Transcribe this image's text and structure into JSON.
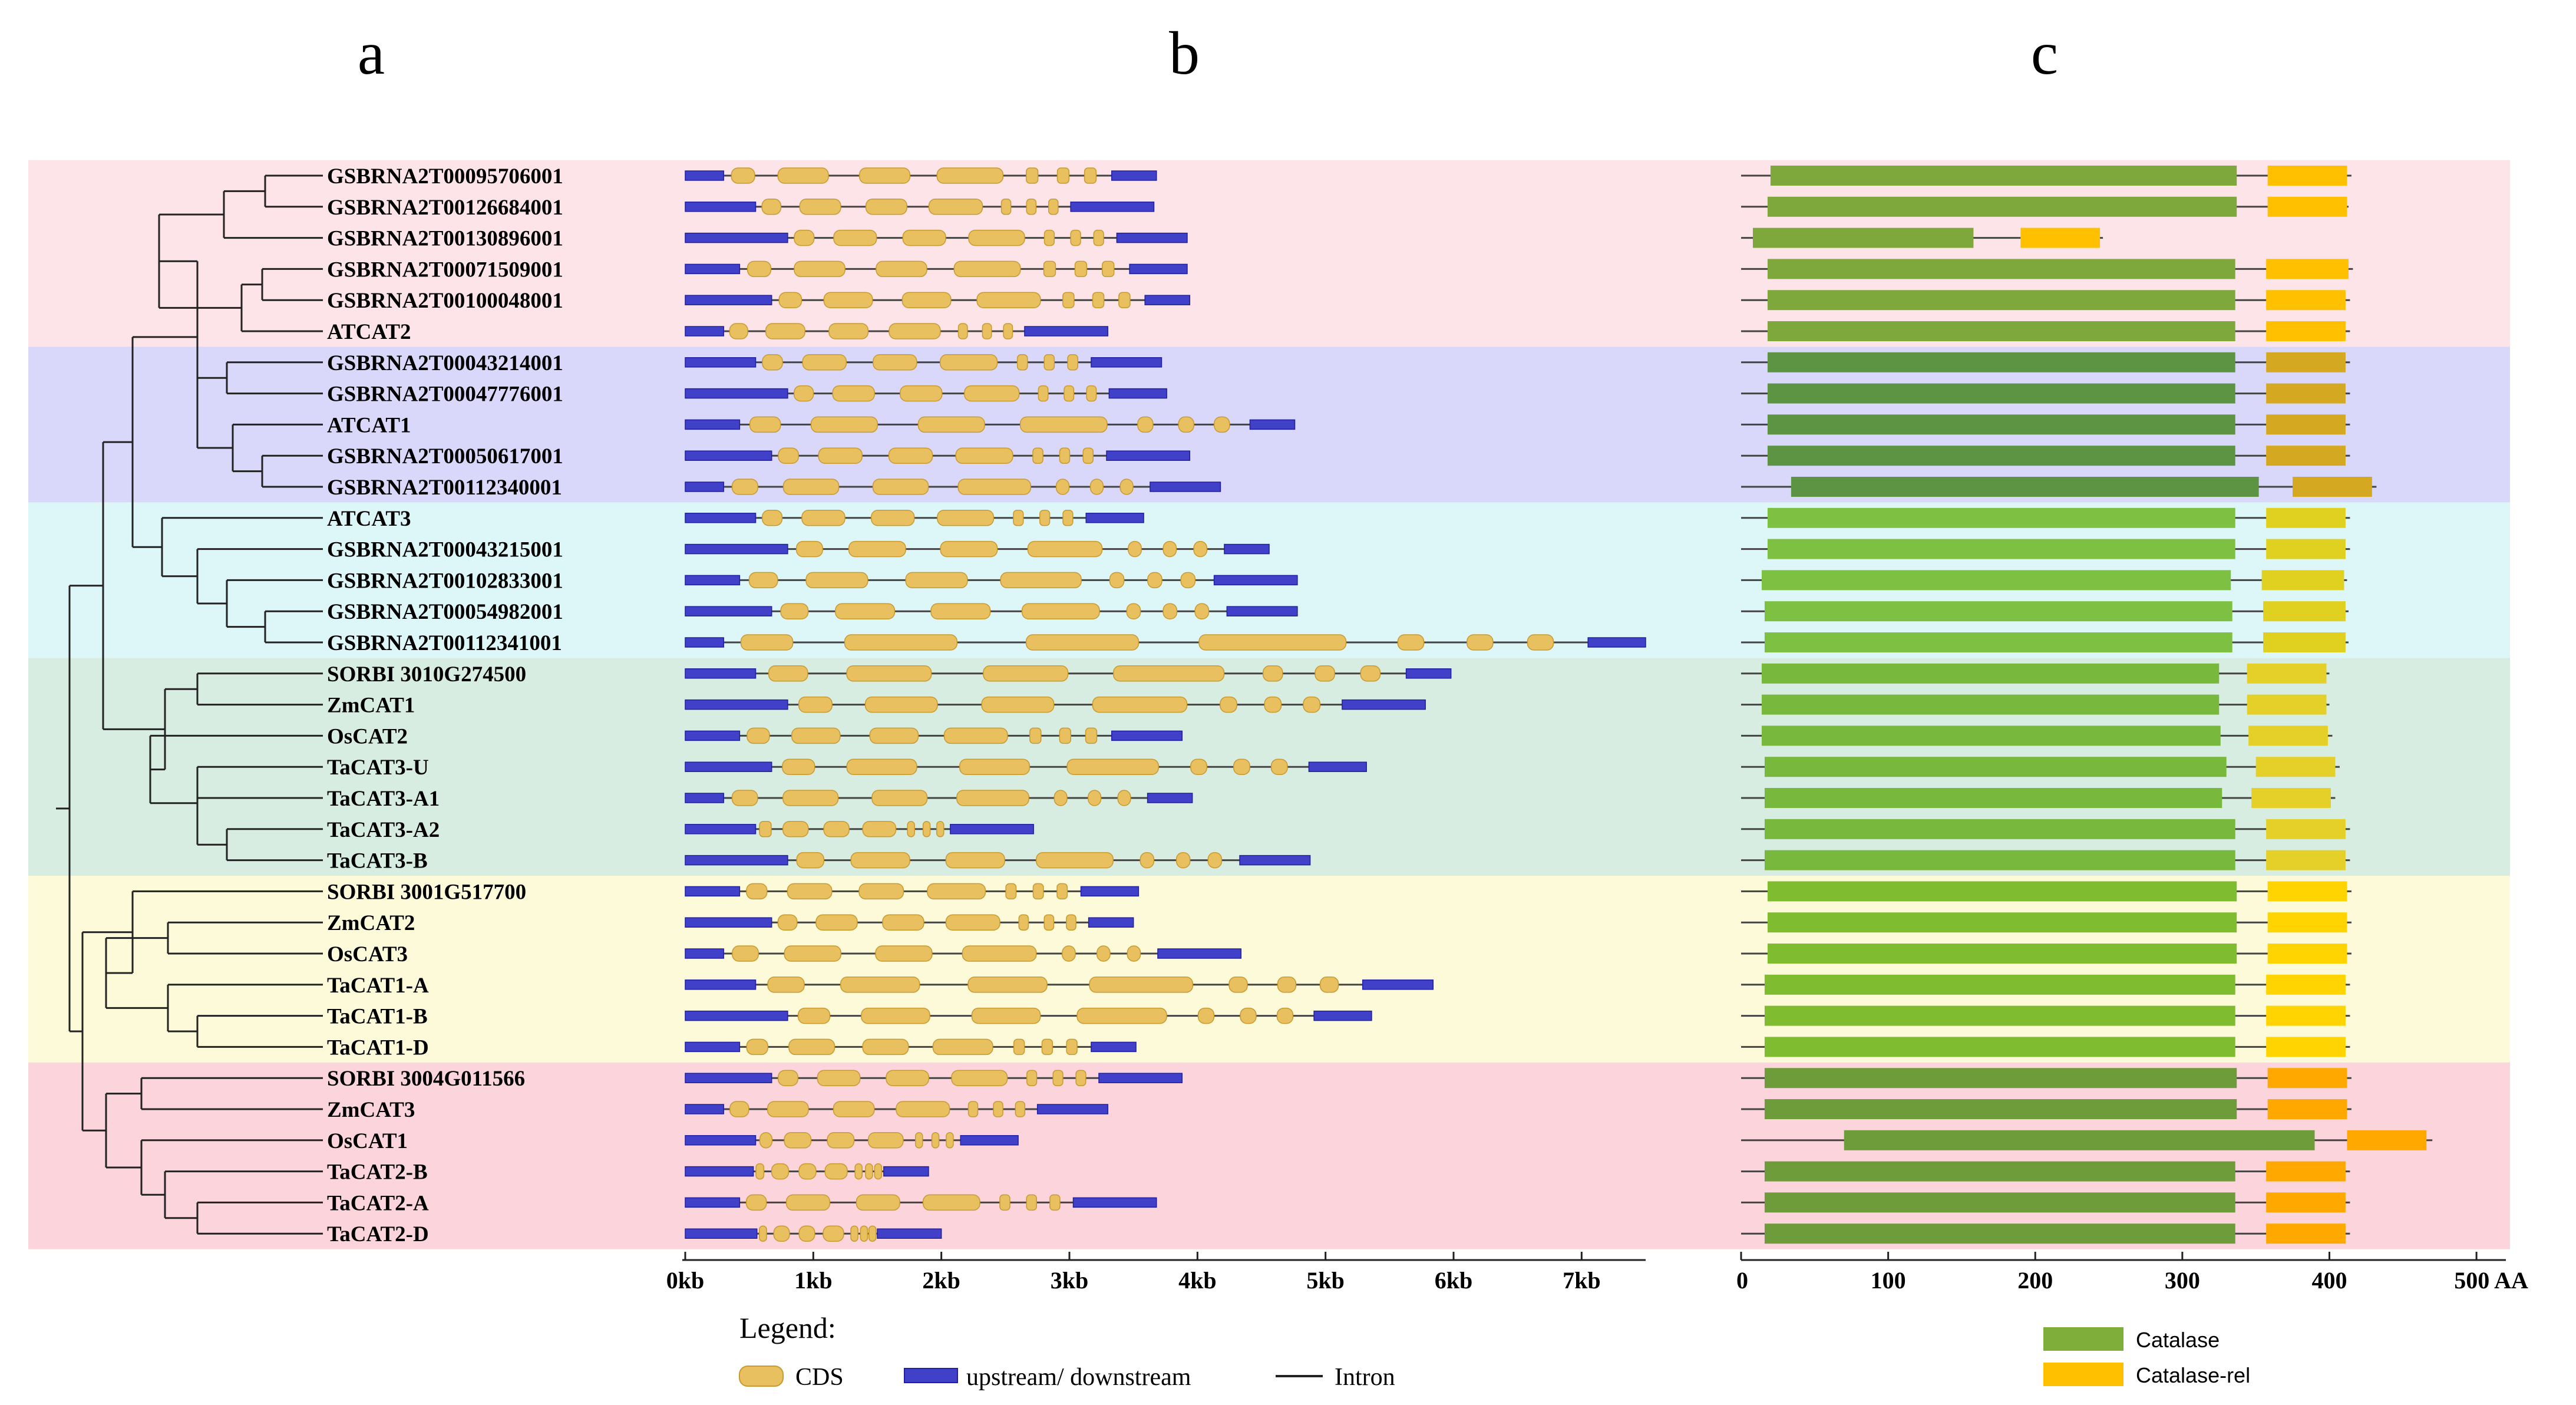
{
  "panels": {
    "a": "a",
    "b": "b",
    "c": "c"
  },
  "colors": {
    "cds": "#e8c060",
    "cds_edge": "#c89a30",
    "utr": "#4040c8",
    "utr_edge": "#2020a0",
    "intron": "#444444",
    "catalase": "#7fae3a",
    "catalase_rel": "#ffc000"
  },
  "groups": [
    {
      "name": "group-1",
      "color": "#fce4e8",
      "first": 0,
      "last": 5,
      "catalase_color": "#7fa83c",
      "rel_color": "#ffc000"
    },
    {
      "name": "group-2",
      "color": "#dad8fa",
      "first": 6,
      "last": 10,
      "catalase_color": "#5d9444",
      "rel_color": "#d4a820"
    },
    {
      "name": "group-3",
      "color": "#ddf6f8",
      "first": 11,
      "last": 15,
      "catalase_color": "#7ec042",
      "rel_color": "#e0d020"
    },
    {
      "name": "group-4",
      "color": "#d8ede2",
      "first": 16,
      "last": 22,
      "catalase_color": "#78b83c",
      "rel_color": "#e4d028"
    },
    {
      "name": "group-5",
      "color": "#fcfad8",
      "first": 23,
      "last": 28,
      "catalase_color": "#80bc30",
      "rel_color": "#ffd400"
    },
    {
      "name": "group-6",
      "color": "#fbd4dc",
      "first": 29,
      "last": 34,
      "catalase_color": "#6f9c3a",
      "rel_color": "#ffa800"
    }
  ],
  "genes": [
    {
      "name": "GSBRNA2T00095706001",
      "len": 3.68,
      "cat": [
        20,
        337
      ],
      "rel": [
        358,
        412
      ],
      "end": 415
    },
    {
      "name": "GSBRNA2T00126684001",
      "len": 3.66,
      "cat": [
        18,
        337
      ],
      "rel": [
        358,
        412
      ],
      "end": 413
    },
    {
      "name": "GSBRNA2T00130896001",
      "len": 3.92,
      "cat": [
        8,
        158
      ],
      "rel": [
        190,
        244
      ],
      "end": 246
    },
    {
      "name": "GSBRNA2T00071509001",
      "len": 3.92,
      "cat": [
        18,
        336
      ],
      "rel": [
        357,
        413
      ],
      "end": 416
    },
    {
      "name": "GSBRNA2T00100048001",
      "len": 3.94,
      "cat": [
        18,
        336
      ],
      "rel": [
        357,
        411
      ],
      "end": 414
    },
    {
      "name": "ATCAT2",
      "len": 3.3,
      "cat": [
        18,
        336
      ],
      "rel": [
        357,
        411
      ],
      "end": 414
    },
    {
      "name": "GSBRNA2T00043214001",
      "len": 3.72,
      "cat": [
        18,
        336
      ],
      "rel": [
        357,
        411
      ],
      "end": 414
    },
    {
      "name": "GSBRNA2T00047776001",
      "len": 3.76,
      "cat": [
        18,
        336
      ],
      "rel": [
        357,
        411
      ],
      "end": 414
    },
    {
      "name": "ATCAT1",
      "len": 4.76,
      "cat": [
        18,
        336
      ],
      "rel": [
        357,
        411
      ],
      "end": 414
    },
    {
      "name": "GSBRNA2T00050617001",
      "len": 3.94,
      "cat": [
        18,
        336
      ],
      "rel": [
        357,
        411
      ],
      "end": 414
    },
    {
      "name": "GSBRNA2T00112340001",
      "len": 4.18,
      "cat": [
        34,
        352
      ],
      "rel": [
        375,
        429
      ],
      "end": 432
    },
    {
      "name": "ATCAT3",
      "len": 3.58,
      "cat": [
        18,
        336
      ],
      "rel": [
        357,
        411
      ],
      "end": 414
    },
    {
      "name": "GSBRNA2T00043215001",
      "len": 4.56,
      "cat": [
        18,
        336
      ],
      "rel": [
        357,
        411
      ],
      "end": 414
    },
    {
      "name": "GSBRNA2T00102833001",
      "len": 4.78,
      "cat": [
        14,
        333
      ],
      "rel": [
        354,
        410
      ],
      "end": 412
    },
    {
      "name": "GSBRNA2T00054982001",
      "len": 4.78,
      "cat": [
        16,
        334
      ],
      "rel": [
        355,
        411
      ],
      "end": 413
    },
    {
      "name": "GSBRNA2T00112341001",
      "len": 7.5,
      "cat": [
        16,
        334
      ],
      "rel": [
        355,
        411
      ],
      "end": 413
    },
    {
      "name": "SORBI 3010G274500",
      "len": 5.98,
      "cat": [
        14,
        325
      ],
      "rel": [
        344,
        398
      ],
      "end": 400
    },
    {
      "name": "ZmCAT1",
      "len": 5.78,
      "cat": [
        14,
        325
      ],
      "rel": [
        344,
        398
      ],
      "end": 400
    },
    {
      "name": "OsCAT2",
      "len": 3.88,
      "cat": [
        14,
        326
      ],
      "rel": [
        345,
        399
      ],
      "end": 402
    },
    {
      "name": "TaCAT3-U",
      "len": 5.32,
      "cat": [
        16,
        330
      ],
      "rel": [
        350,
        404
      ],
      "end": 407
    },
    {
      "name": "TaCAT3-A1",
      "len": 3.96,
      "cat": [
        16,
        327
      ],
      "rel": [
        347,
        401
      ],
      "end": 404
    },
    {
      "name": "TaCAT3-A2",
      "len": 2.72,
      "cat": [
        16,
        336
      ],
      "rel": [
        357,
        411
      ],
      "end": 414
    },
    {
      "name": "TaCAT3-B",
      "len": 4.88,
      "cat": [
        16,
        336
      ],
      "rel": [
        357,
        411
      ],
      "end": 414
    },
    {
      "name": "SORBI 3001G517700",
      "len": 3.54,
      "cat": [
        18,
        337
      ],
      "rel": [
        358,
        412
      ],
      "end": 415
    },
    {
      "name": "ZmCAT2",
      "len": 3.5,
      "cat": [
        18,
        337
      ],
      "rel": [
        358,
        412
      ],
      "end": 415
    },
    {
      "name": "OsCAT3",
      "len": 4.34,
      "cat": [
        18,
        337
      ],
      "rel": [
        358,
        412
      ],
      "end": 415
    },
    {
      "name": "TaCAT1-A",
      "len": 5.84,
      "cat": [
        16,
        336
      ],
      "rel": [
        357,
        411
      ],
      "end": 414
    },
    {
      "name": "TaCAT1-B",
      "len": 5.36,
      "cat": [
        16,
        336
      ],
      "rel": [
        357,
        411
      ],
      "end": 414
    },
    {
      "name": "TaCAT1-D",
      "len": 3.52,
      "cat": [
        16,
        336
      ],
      "rel": [
        357,
        411
      ],
      "end": 414
    },
    {
      "name": "SORBI 3004G011566",
      "len": 3.88,
      "cat": [
        16,
        337
      ],
      "rel": [
        358,
        412
      ],
      "end": 415
    },
    {
      "name": "ZmCAT3",
      "len": 3.3,
      "cat": [
        16,
        337
      ],
      "rel": [
        358,
        412
      ],
      "end": 415
    },
    {
      "name": "OsCAT1",
      "len": 2.6,
      "cat": [
        70,
        390
      ],
      "rel": [
        412,
        466
      ],
      "end": 470
    },
    {
      "name": "TaCAT2-B",
      "len": 1.9,
      "cat": [
        16,
        336
      ],
      "rel": [
        357,
        411
      ],
      "end": 414
    },
    {
      "name": "TaCAT2-A",
      "len": 3.68,
      "cat": [
        16,
        336
      ],
      "rel": [
        357,
        411
      ],
      "end": 414
    },
    {
      "name": "TaCAT2-D",
      "len": 2.0,
      "cat": [
        16,
        336
      ],
      "rel": [
        357,
        411
      ],
      "end": 414
    }
  ],
  "axis_b": {
    "ticks": [
      "0kb",
      "1kb",
      "2kb",
      "3kb",
      "4kb",
      "5kb",
      "6kb",
      "7kb"
    ],
    "max_kb": 7.5
  },
  "axis_c": {
    "ticks": [
      "0",
      "100",
      "200",
      "300",
      "400",
      "500 AA"
    ],
    "max_aa": 520
  },
  "legend_b": {
    "title": "Legend:",
    "cds": "CDS",
    "utr": "upstream/ downstream",
    "intron": "Intron"
  },
  "legend_c": {
    "catalase": "Catalase",
    "catalase_rel": "Catalase-rel"
  }
}
